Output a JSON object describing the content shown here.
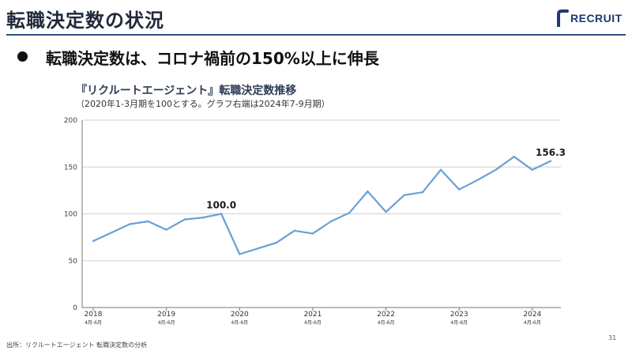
{
  "slide": {
    "title": "転職決定数の状況",
    "logo_text": "RECRUIT",
    "bullet": "転職決定数は、コロナ禍前の150%以上に伸長",
    "source": "出所：リクルートエージェント 転職決定数の分析",
    "page_number": "31",
    "colors": {
      "title_rule": "#2f4f86",
      "logo": "#1e3a6e",
      "line": "#6a9fd8"
    }
  },
  "chart_data": {
    "type": "line",
    "title": "『リクルートエージェント』転職決定数推移",
    "subtitle": "（2020年1-3月期を100とする。グラフ右端は2024年7-9月期）",
    "xlabel": "",
    "ylabel": "",
    "ylim": [
      0,
      200
    ],
    "yticks": [
      "0",
      "50",
      "100",
      "150",
      "200"
    ],
    "grid": true,
    "quarters": [
      "2018 Q2",
      "2018 Q3",
      "2018 Q4",
      "2019 Q1",
      "2019 Q2",
      "2019 Q3",
      "2019 Q4",
      "2020 Q1",
      "2020 Q2",
      "2020 Q3",
      "2020 Q4",
      "2021 Q1",
      "2021 Q2",
      "2021 Q3",
      "2021 Q4",
      "2022 Q1",
      "2022 Q2",
      "2022 Q3",
      "2022 Q4",
      "2023 Q1",
      "2023 Q2",
      "2023 Q3",
      "2023 Q4",
      "2024 Q1",
      "2024 Q2",
      "2024 Q3"
    ],
    "values": [
      71,
      80,
      89,
      92,
      83,
      94,
      96,
      100,
      57,
      63,
      69,
      82,
      79,
      92,
      101,
      124,
      102,
      120,
      123,
      147,
      126,
      136,
      147,
      161,
      147,
      156.3
    ],
    "year_labels": [
      {
        "year": "2018",
        "sub": "4月-6月",
        "index": 0
      },
      {
        "year": "2019",
        "sub": "4月-6月",
        "index": 4
      },
      {
        "year": "2020",
        "sub": "4月-6月",
        "index": 8
      },
      {
        "year": "2021",
        "sub": "4月-6月",
        "index": 12
      },
      {
        "year": "2022",
        "sub": "4月-6月",
        "index": 16
      },
      {
        "year": "2023",
        "sub": "4月-6月",
        "index": 20
      },
      {
        "year": "2024",
        "sub": "4月-6月",
        "index": 24
      }
    ],
    "annotations": [
      {
        "index": 7,
        "text": "100.0"
      },
      {
        "index": 25,
        "text": "156.3"
      }
    ]
  }
}
